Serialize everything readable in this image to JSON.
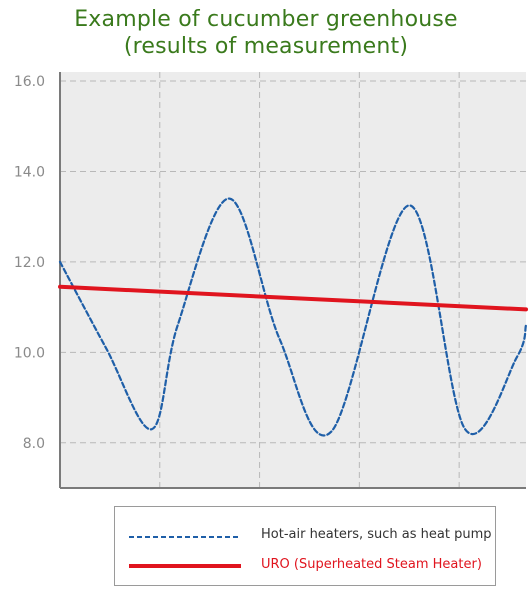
{
  "title_lines": [
    "Example of cucumber greenhouse",
    "(results of measurement)"
  ],
  "chart_data": {
    "type": "line",
    "title": "Example of cucumber greenhouse (results of measurement)",
    "xlabel": "",
    "ylabel": "",
    "x_range": [
      0,
      4.67
    ],
    "ylim": [
      7.0,
      16.2
    ],
    "yticks": [
      8.0,
      10.0,
      12.0,
      14.0,
      16.0
    ],
    "ytick_labels": [
      "8.0",
      "10.0",
      "12.0",
      "14.0",
      "16.0"
    ],
    "x_gridlines": [
      1,
      2,
      3,
      4
    ],
    "grid": true,
    "legend_position": "bottom",
    "series": [
      {
        "name": "Hot-air heaters, such as heat pump",
        "style": "dashed",
        "color": "#1f5fa8",
        "x": [
          0,
          0.46,
          0.92,
          1.18,
          1.7,
          2.2,
          2.72,
          3.5,
          4.06,
          4.58,
          4.67
        ],
        "y": [
          12.0,
          10.1,
          8.3,
          10.6,
          13.4,
          10.3,
          8.25,
          13.25,
          8.3,
          9.9,
          10.6
        ]
      },
      {
        "name": "URO (Superheated Steam Heater)",
        "style": "solid",
        "color": "#e0141e",
        "x": [
          0,
          4.67
        ],
        "y": [
          11.45,
          10.95
        ]
      }
    ]
  }
}
